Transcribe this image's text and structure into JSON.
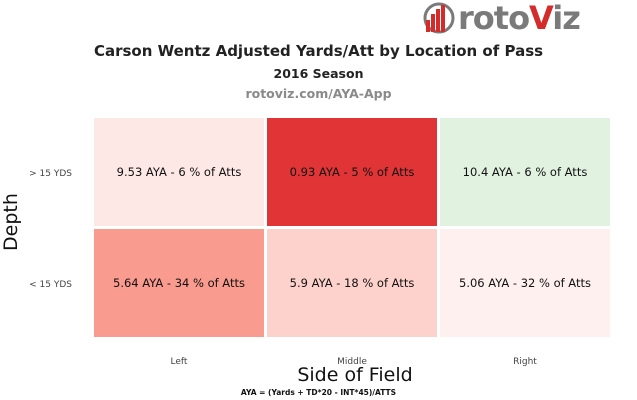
{
  "brand": {
    "logo_text_a": "roto",
    "logo_text_v": "V",
    "logo_text_b": "iz"
  },
  "chart_data": {
    "type": "heatmap",
    "title": "Carson Wentz Adjusted Yards/Att by Location of Pass",
    "subtitle": "2016 Season",
    "source": "rotoviz.com/AYA-App",
    "xlabel": "Side of Field",
    "ylabel": "Depth",
    "x_categories": [
      "Left",
      "Middle",
      "Right"
    ],
    "y_categories": [
      "> 15 YDS",
      "< 15 YDS"
    ],
    "cells": [
      {
        "x": "Left",
        "y": "> 15 YDS",
        "aya": 9.53,
        "pct_atts": 6,
        "label": "9.53 AYA - 6 % of Atts",
        "color": "#fde8e6"
      },
      {
        "x": "Middle",
        "y": "> 15 YDS",
        "aya": 0.93,
        "pct_atts": 5,
        "label": "0.93 AYA - 5 % of Atts",
        "color": "#e03436"
      },
      {
        "x": "Right",
        "y": "> 15 YDS",
        "aya": 10.4,
        "pct_atts": 6,
        "label": "10.4 AYA - 6 % of Atts",
        "color": "#e2f2e0"
      },
      {
        "x": "Left",
        "y": "< 15 YDS",
        "aya": 5.64,
        "pct_atts": 34,
        "label": "5.64 AYA - 34 % of Atts",
        "color": "#f99b8e"
      },
      {
        "x": "Middle",
        "y": "< 15 YDS",
        "aya": 5.9,
        "pct_atts": 18,
        "label": "5.9 AYA - 18 % of Atts",
        "color": "#fed2cc"
      },
      {
        "x": "Right",
        "y": "< 15 YDS",
        "aya": 5.06,
        "pct_atts": 32,
        "label": "5.06 AYA - 32 % of Atts",
        "color": "#fdf0ee"
      }
    ],
    "footnote": "AYA = (Yards + TD*20 - INT*45)/ATTS",
    "grid": false
  }
}
